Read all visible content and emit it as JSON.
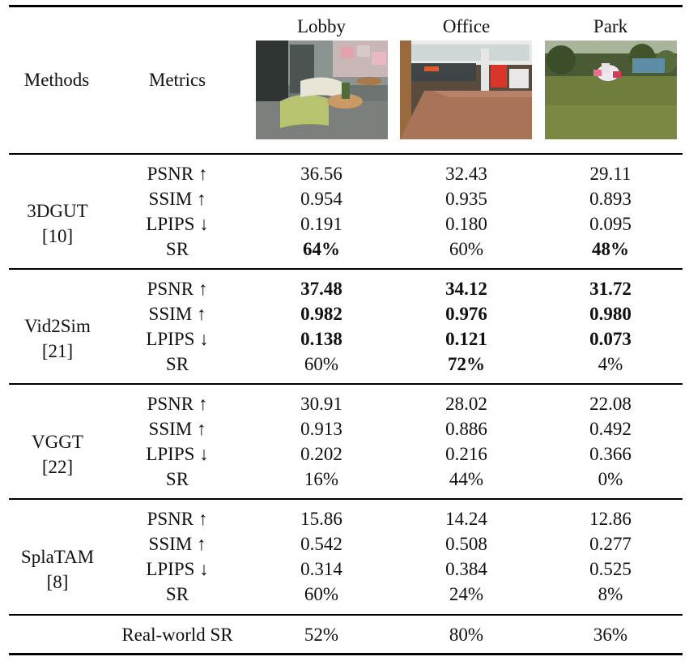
{
  "header": {
    "methods": "Methods",
    "metrics": "Metrics",
    "scenes": [
      {
        "label": "Lobby",
        "image_icon": "lobby-scene-photo"
      },
      {
        "label": "Office",
        "image_icon": "office-scene-photo"
      },
      {
        "label": "Park",
        "image_icon": "park-scene-photo"
      }
    ]
  },
  "groups": [
    {
      "method": "3DGUT",
      "ref": "[10]",
      "rows": [
        {
          "metric": "PSNR ↑",
          "values": [
            "36.56",
            "32.43",
            "29.11"
          ],
          "bold": [
            false,
            false,
            false
          ]
        },
        {
          "metric": "SSIM ↑",
          "values": [
            "0.954",
            "0.935",
            "0.893"
          ],
          "bold": [
            false,
            false,
            false
          ]
        },
        {
          "metric": "LPIPS ↓",
          "values": [
            "0.191",
            "0.180",
            "0.095"
          ],
          "bold": [
            false,
            false,
            false
          ]
        },
        {
          "metric": "SR",
          "values": [
            "64%",
            "60%",
            "48%"
          ],
          "bold": [
            true,
            false,
            true
          ]
        }
      ]
    },
    {
      "method": "Vid2Sim",
      "ref": "[21]",
      "rows": [
        {
          "metric": "PSNR ↑",
          "values": [
            "37.48",
            "34.12",
            "31.72"
          ],
          "bold": [
            true,
            true,
            true
          ]
        },
        {
          "metric": "SSIM ↑",
          "values": [
            "0.982",
            "0.976",
            "0.980"
          ],
          "bold": [
            true,
            true,
            true
          ]
        },
        {
          "metric": "LPIPS ↓",
          "values": [
            "0.138",
            "0.121",
            "0.073"
          ],
          "bold": [
            true,
            true,
            true
          ]
        },
        {
          "metric": "SR",
          "values": [
            "60%",
            "72%",
            "4%"
          ],
          "bold": [
            false,
            true,
            false
          ]
        }
      ]
    },
    {
      "method": "VGGT",
      "ref": "[22]",
      "rows": [
        {
          "metric": "PSNR ↑",
          "values": [
            "30.91",
            "28.02",
            "22.08"
          ],
          "bold": [
            false,
            false,
            false
          ]
        },
        {
          "metric": "SSIM ↑",
          "values": [
            "0.913",
            "0.886",
            "0.492"
          ],
          "bold": [
            false,
            false,
            false
          ]
        },
        {
          "metric": "LPIPS ↓",
          "values": [
            "0.202",
            "0.216",
            "0.366"
          ],
          "bold": [
            false,
            false,
            false
          ]
        },
        {
          "metric": "SR",
          "values": [
            "16%",
            "44%",
            "0%"
          ],
          "bold": [
            false,
            false,
            false
          ]
        }
      ]
    },
    {
      "method": "SplaTAM",
      "ref": "[8]",
      "rows": [
        {
          "metric": "PSNR ↑",
          "values": [
            "15.86",
            "14.24",
            "12.86"
          ],
          "bold": [
            false,
            false,
            false
          ]
        },
        {
          "metric": "SSIM ↑",
          "values": [
            "0.542",
            "0.508",
            "0.277"
          ],
          "bold": [
            false,
            false,
            false
          ]
        },
        {
          "metric": "LPIPS ↓",
          "values": [
            "0.314",
            "0.384",
            "0.525"
          ],
          "bold": [
            false,
            false,
            false
          ]
        },
        {
          "metric": "SR",
          "values": [
            "60%",
            "24%",
            "8%"
          ],
          "bold": [
            false,
            false,
            false
          ]
        }
      ]
    }
  ],
  "footer": {
    "label": "Real-world SR",
    "values": [
      "52%",
      "80%",
      "36%"
    ]
  }
}
